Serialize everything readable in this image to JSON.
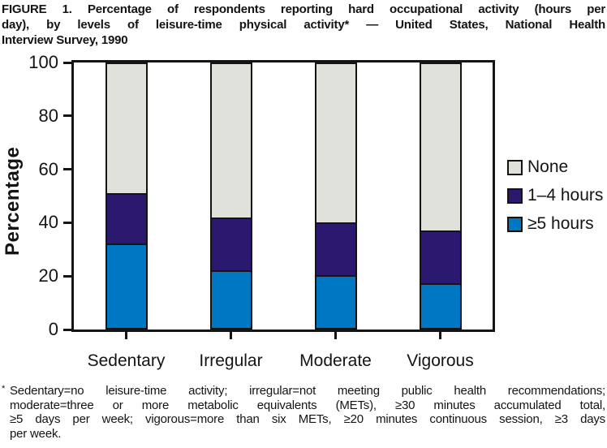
{
  "figure": {
    "title_lines": [
      "FIGURE 1. Percentage of respondents reporting hard occupational activity (hours per",
      "day), by levels of leisure-time physical activity* — United States, National Health",
      "Interview Survey, 1990"
    ]
  },
  "footnote": {
    "marker": "*",
    "lines": [
      "Sedentary=no leisure-time activity; irregular=not meeting public health recommendations;",
      "moderate=three or more metabolic equivalents (METs), ≥30 minutes accumulated total,",
      "≥5 days per week; vigorous=more than six METs, ≥20 minutes continuous session, ≥3 days",
      "per week."
    ]
  },
  "chart_data": {
    "type": "bar",
    "stacked": true,
    "title": "FIGURE 1. Percentage of respondents reporting hard occupational activity (hours per day), by levels of leisure-time physical activity* — United States, National Health Interview Survey, 1990",
    "categories": [
      "Sedentary",
      "Irregular",
      "Moderate",
      "Vigorous"
    ],
    "series": [
      {
        "name": "≥5 hours",
        "color": "#0077c2",
        "values": [
          32,
          22,
          20,
          17
        ]
      },
      {
        "name": "1–4 hours",
        "color": "#2a196e",
        "values": [
          19,
          20,
          20,
          20
        ]
      },
      {
        "name": "None",
        "color": "#e1e1dc",
        "values": [
          49,
          58,
          60,
          63
        ]
      }
    ],
    "xlabel": "",
    "ylabel": "Percentage",
    "ylim": [
      0,
      100
    ],
    "yticks": [
      0,
      20,
      40,
      60,
      80,
      100
    ],
    "grid": false,
    "legend_position": "right",
    "legend_order": [
      "None",
      "1–4 hours",
      "≥5 hours"
    ],
    "outline_color": "#141414",
    "background_color": "#ffffff"
  }
}
